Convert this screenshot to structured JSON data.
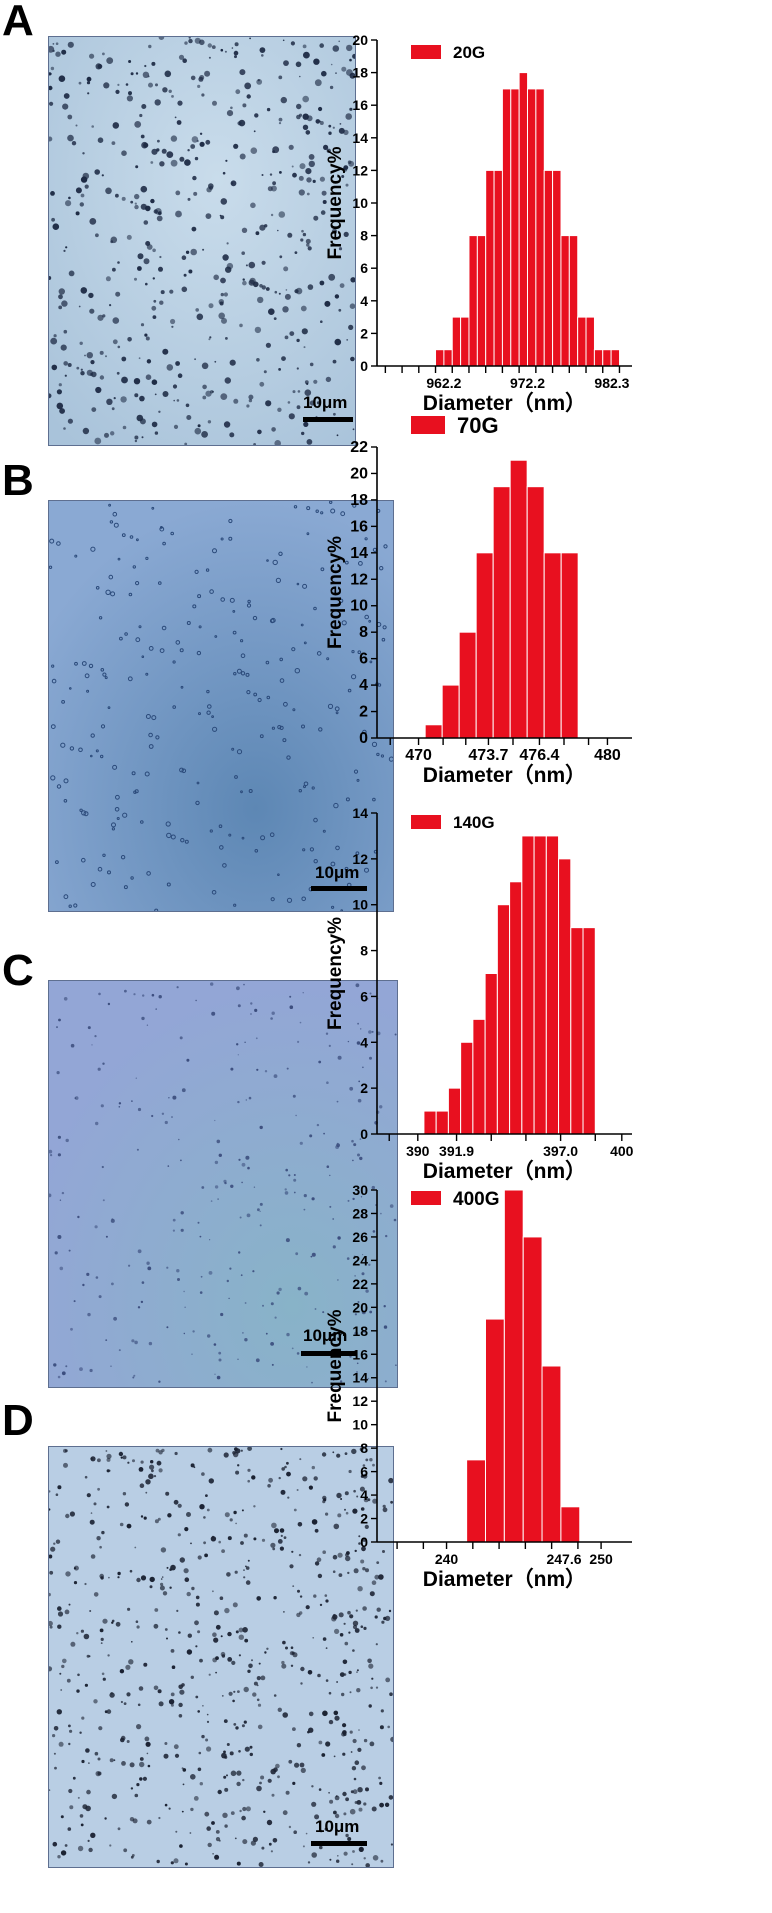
{
  "panels": [
    {
      "label": "A",
      "scale_label": "10μm",
      "chart_data": {
        "type": "bar",
        "legend": "20G",
        "color": "#e8101f",
        "xlabel": "Diameter（nm）",
        "ylabel": "Frequency%",
        "ylim": [
          0,
          20
        ],
        "yticks": [
          0,
          2,
          4,
          6,
          8,
          10,
          12,
          14,
          16,
          18,
          20
        ],
        "xlim": [
          954.2,
          984.7
        ],
        "xtick_labels": [
          {
            "value": 962.2,
            "text": "962.2"
          },
          {
            "value": 972.2,
            "text": "972.2"
          },
          {
            "value": 982.3,
            "text": "982.3"
          }
        ],
        "x_minor_ticks": [
          955.2,
          957.2,
          959.2,
          961.2,
          963.2,
          965.2,
          967.2,
          969.2,
          971.2,
          973.2,
          975.2,
          977.2,
          979.2,
          981.2,
          983.2
        ],
        "bin_width": 1.01,
        "bins": [
          961.2,
          962.2,
          963.2,
          964.2,
          965.2,
          966.2,
          967.2,
          968.2,
          969.2,
          970.2,
          971.2,
          972.2,
          973.2,
          974.2,
          975.2,
          976.2,
          977.2,
          978.2,
          979.2,
          980.2,
          981.2,
          982.2
        ],
        "values": [
          1,
          1,
          3,
          3,
          8,
          8,
          12,
          12,
          17,
          17,
          18,
          17,
          17,
          12,
          12,
          8,
          8,
          3,
          3,
          1,
          1,
          1
        ]
      }
    },
    {
      "label": "B",
      "scale_label": "10μm",
      "chart_data": {
        "type": "bar",
        "legend": "70G",
        "color": "#e8101f",
        "xlabel": "Diameter（nm）",
        "ylabel": "Frequency%",
        "ylim": [
          0,
          22
        ],
        "yticks": [
          0,
          2,
          4,
          6,
          8,
          10,
          12,
          14,
          16,
          18,
          20,
          22
        ],
        "xlim": [
          467.8,
          481.3
        ],
        "xtick_labels": [
          {
            "value": 470,
            "text": "470"
          },
          {
            "value": 473.7,
            "text": "473.7"
          },
          {
            "value": 476.4,
            "text": "476.4"
          },
          {
            "value": 480,
            "text": "480"
          }
        ],
        "x_minor_ticks": [
          468.5,
          470,
          471.3,
          472.5,
          473.7,
          475,
          476.4,
          477.7,
          479,
          480
        ],
        "bin_width": 0.9,
        "bins": [
          470.35,
          471.25,
          472.15,
          473.05,
          473.95,
          474.85,
          475.75,
          476.65,
          477.55
        ],
        "values": [
          1,
          4,
          8,
          14,
          19,
          21,
          19,
          14,
          14
        ]
      }
    },
    {
      "label": "C",
      "scale_label": "10μm",
      "chart_data": {
        "type": "bar",
        "legend": "140G",
        "color": "#e8101f",
        "xlabel": "Diameter（nm）",
        "ylabel": "Frequency%",
        "ylim": [
          0,
          14
        ],
        "yticks": [
          0,
          2,
          4,
          6,
          8,
          10,
          12,
          14
        ],
        "xlim": [
          388,
          400.5
        ],
        "xtick_labels": [
          {
            "value": 390,
            "text": "390"
          },
          {
            "value": 391.9,
            "text": "391.9"
          },
          {
            "value": 397.0,
            "text": "397.0"
          },
          {
            "value": 400,
            "text": "400"
          }
        ],
        "x_minor_ticks": [
          388.6,
          390,
          391.9,
          393.6,
          395.3,
          397.0,
          398.7,
          400
        ],
        "bin_width": 0.6,
        "bins": [
          390.3,
          390.9,
          391.5,
          392.1,
          392.7,
          393.3,
          393.9,
          394.5,
          395.1,
          395.7,
          396.3,
          396.9,
          397.5,
          398.1
        ],
        "values": [
          1,
          1,
          2,
          4,
          5,
          7,
          10,
          11,
          13,
          13,
          13,
          12,
          9,
          9
        ]
      }
    },
    {
      "label": "D",
      "scale_label": "10μm",
      "chart_data": {
        "type": "bar",
        "legend": "400G",
        "color": "#e8101f",
        "xlabel": "Diameter（nm）",
        "ylabel": "Frequency%",
        "ylim": [
          0,
          30
        ],
        "yticks": [
          0,
          2,
          4,
          6,
          8,
          10,
          12,
          14,
          16,
          18,
          20,
          22,
          24,
          26,
          28,
          30
        ],
        "xlim": [
          235.5,
          252
        ],
        "xtick_labels": [
          {
            "value": 240,
            "text": "240"
          },
          {
            "value": 247.6,
            "text": "247.6"
          },
          {
            "value": 250,
            "text": "250"
          }
        ],
        "x_minor_ticks": [
          236.8,
          238.5,
          240,
          241.7,
          243.4,
          245.1,
          246.8,
          248.5,
          250
        ],
        "bin_width": 1.22,
        "bins": [
          241.3,
          242.52,
          243.74,
          244.96,
          246.18,
          247.4
        ],
        "values": [
          7,
          19,
          30,
          26,
          15,
          3
        ]
      }
    }
  ]
}
